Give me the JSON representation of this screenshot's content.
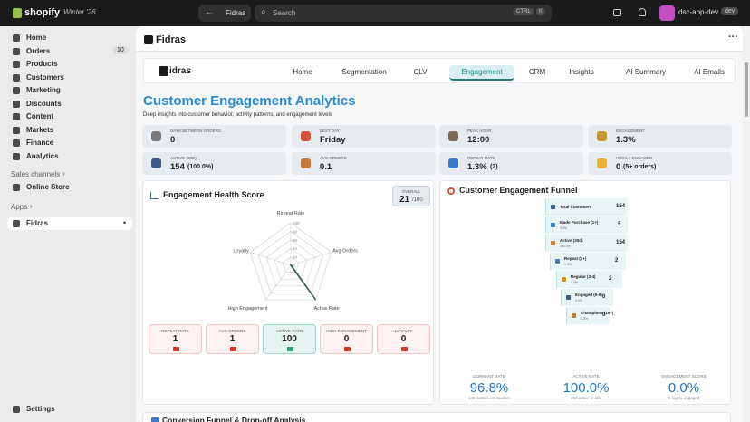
{
  "topbar": {
    "brand": "shopify",
    "edition": "Winter '26",
    "app_button": "Fidras",
    "search": "Search",
    "shortcut": [
      "CTRL",
      "K"
    ],
    "store": "dsc-app-dev",
    "store_badge": "dev"
  },
  "sidebar": {
    "items": [
      {
        "label": "Home"
      },
      {
        "label": "Orders",
        "badge": "10"
      },
      {
        "label": "Products"
      },
      {
        "label": "Customers"
      },
      {
        "label": "Marketing"
      },
      {
        "label": "Discounts"
      },
      {
        "label": "Content"
      },
      {
        "label": "Markets"
      },
      {
        "label": "Finance"
      },
      {
        "label": "Analytics"
      }
    ],
    "sales_channels": "Sales channels",
    "channels": [
      "Online Store"
    ],
    "apps": "Apps",
    "app_items": [
      "Fidras"
    ],
    "settings": "Settings"
  },
  "app_header": {
    "title": "Fidras",
    "logo_text": "idras"
  },
  "nav": {
    "tabs": [
      "Home",
      "Segmentation",
      "CLV",
      "Engagement",
      "CRM",
      "Insights",
      "AI Summary",
      "AI Emails"
    ],
    "active": 3
  },
  "page": {
    "title": "Customer Engagement Analytics",
    "subtitle": "Deep insights into customer behavior, activity patterns, and engagement levels"
  },
  "stats": [
    {
      "label": "DAYS BETWEEN ORDERS",
      "value": "0"
    },
    {
      "label": "BEST DAY",
      "value": "Friday"
    },
    {
      "label": "PEAK HOUR",
      "value": "12:00"
    },
    {
      "label": "ENGAGEMENT",
      "value": "1.3%"
    },
    {
      "label": "ACTIVE (30D)",
      "value": "154",
      "sub": "(100.0%)"
    },
    {
      "label": "AVG ORDERS",
      "value": "0.1"
    },
    {
      "label": "REPEAT RATE",
      "value": "1.3%",
      "sub": "(2)"
    },
    {
      "label": "HIGHLY ENGAGED",
      "value": "0",
      "sub": "(5+ orders)"
    }
  ],
  "health": {
    "title": "Engagement Health Score",
    "overall_label": "OVERALL",
    "overall": 21,
    "overall_suffix": "/100",
    "radar": {
      "axes": [
        "Repeat Rate",
        "Avg Orders",
        "Active Rate",
        "High Engagement",
        "Loyalty"
      ],
      "values": [
        1,
        1,
        100,
        0,
        0
      ],
      "rlim": [
        0,
        100
      ],
      "rticks": [
        0,
        20,
        40,
        60,
        80,
        100
      ],
      "color": "#2f5f5a"
    },
    "cards": [
      {
        "label": "REPEAT RATE",
        "color": "red"
      },
      {
        "label": "AVG ORDERS",
        "color": "red"
      },
      {
        "label": "ACTIVE RATE",
        "color": "green"
      },
      {
        "label": "HIGH ENGAGEMENT",
        "color": "red"
      },
      {
        "label": "LOYALTY",
        "color": "red"
      }
    ]
  },
  "funnel": {
    "title": "Customer Engagement Funnel",
    "steps": [
      {
        "label": "Total Customers",
        "value": "154"
      },
      {
        "label": "Made Purchase (1+)",
        "value": "5",
        "pct": "3.2%"
      },
      {
        "label": "Active (30d)",
        "value": "154",
        "pct": "100.0%"
      },
      {
        "label": "Repeat (2+)",
        "value": "2",
        "pct": "1.3%"
      },
      {
        "label": "Regular (3-4)",
        "value": "2",
        "pct": "1.3%"
      },
      {
        "label": "Engaged (5-9)",
        "value": "0",
        "pct": "0.0%"
      },
      {
        "label": "Champions (10+)",
        "value": "0",
        "pct": "0.0%"
      }
    ],
    "metrics": [
      {
        "label": "DORMANT RATE",
        "value": "96.8%",
        "note": "149 customers inactive"
      },
      {
        "label": "ACTIVE RATE",
        "value": "100.0%",
        "note": "154 active in 30d"
      },
      {
        "label": "ENGAGEMENT SCORE",
        "value": "0.0%",
        "note": "0 highly engaged"
      }
    ]
  },
  "next_section": "Conversion Funnel & Drop-off Analysis"
}
